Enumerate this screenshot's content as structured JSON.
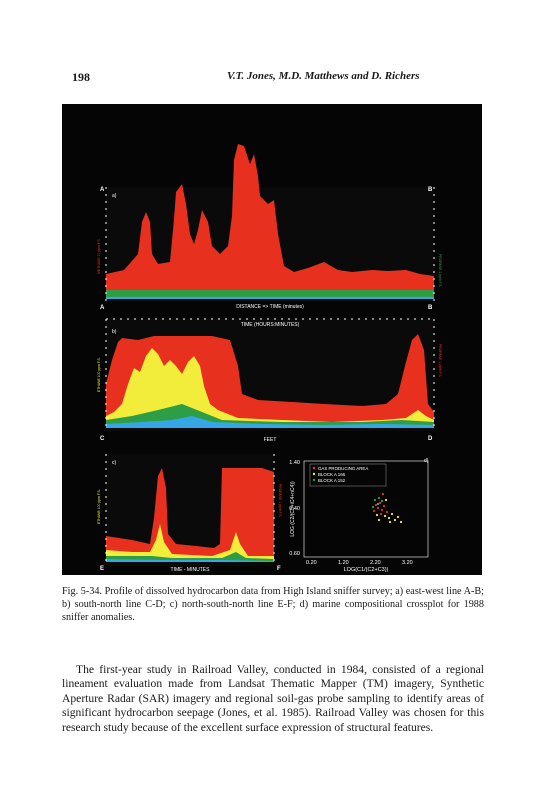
{
  "header": {
    "page_number": "198",
    "running_head": "V.T. Jones, M.D. Matthews and D. Richers"
  },
  "figure": {
    "panels": [
      {
        "id": "a",
        "tag": "a)",
        "start": "A",
        "end": "B",
        "axis_label": "DISTANCE => TIME (minutes)",
        "left_label": "METHANE 10 ppm F.S.",
        "right_label": "PROPANE 1 ppm F.S."
      },
      {
        "id": "b",
        "tag": "b)",
        "start": "C",
        "end": "D",
        "top_axis_label": "TIME (HOURS:MINUTES)",
        "bottom_axis_label": "FEET",
        "left_label": "ETHANE 100 ppm F.S.",
        "right_label": "PROPANE 1 ppm F.S."
      },
      {
        "id": "c",
        "tag": "c)",
        "start": "E",
        "end": "F",
        "axis_label": "TIME - MINUTES",
        "left_label": "ETHANE 100 ppm F.S.",
        "right_label": "PROPANE 1 ppm F.S."
      }
    ],
    "crossplot": {
      "tag": "d)",
      "ylabel": "LOG (C2/(C3+iC4+nC4))",
      "xlabel": "LOG(C1/(C2+C3))",
      "y_ticks": [
        "1.40",
        "0.40",
        "0.60"
      ],
      "x_ticks": [
        "0.20",
        "1.20",
        "2.20",
        "3.20"
      ],
      "legend": [
        "GAS PRODUCING AREA",
        "BLOCK A 166",
        "BLOCK A 152"
      ]
    },
    "colors": {
      "red": "#e8301e",
      "yellow": "#f2ec3a",
      "green": "#2e9e46",
      "blue": "#36a6e6",
      "bg": "#050505"
    }
  },
  "caption": "Fig. 5-34. Profile of dissolved hydrocarbon data from High Island sniffer survey; a) east-west line A-B; b) south-north line C-D; c) north-south-north line E-F; d) marine compositional crossplot for 1988 sniffer anomalies.",
  "body_text": "The first-year study in Railroad Valley, conducted in 1984, consisted of a regional lineament evaluation made from Landsat Thematic Mapper (TM) imagery, Synthetic Aperture Radar (SAR) imagery and regional soil-gas probe sampling to identify areas of significant hydrocarbon seepage (Jones, et al. 1985). Railroad Valley was chosen for this research study because of the excellent surface expression of structural features."
}
